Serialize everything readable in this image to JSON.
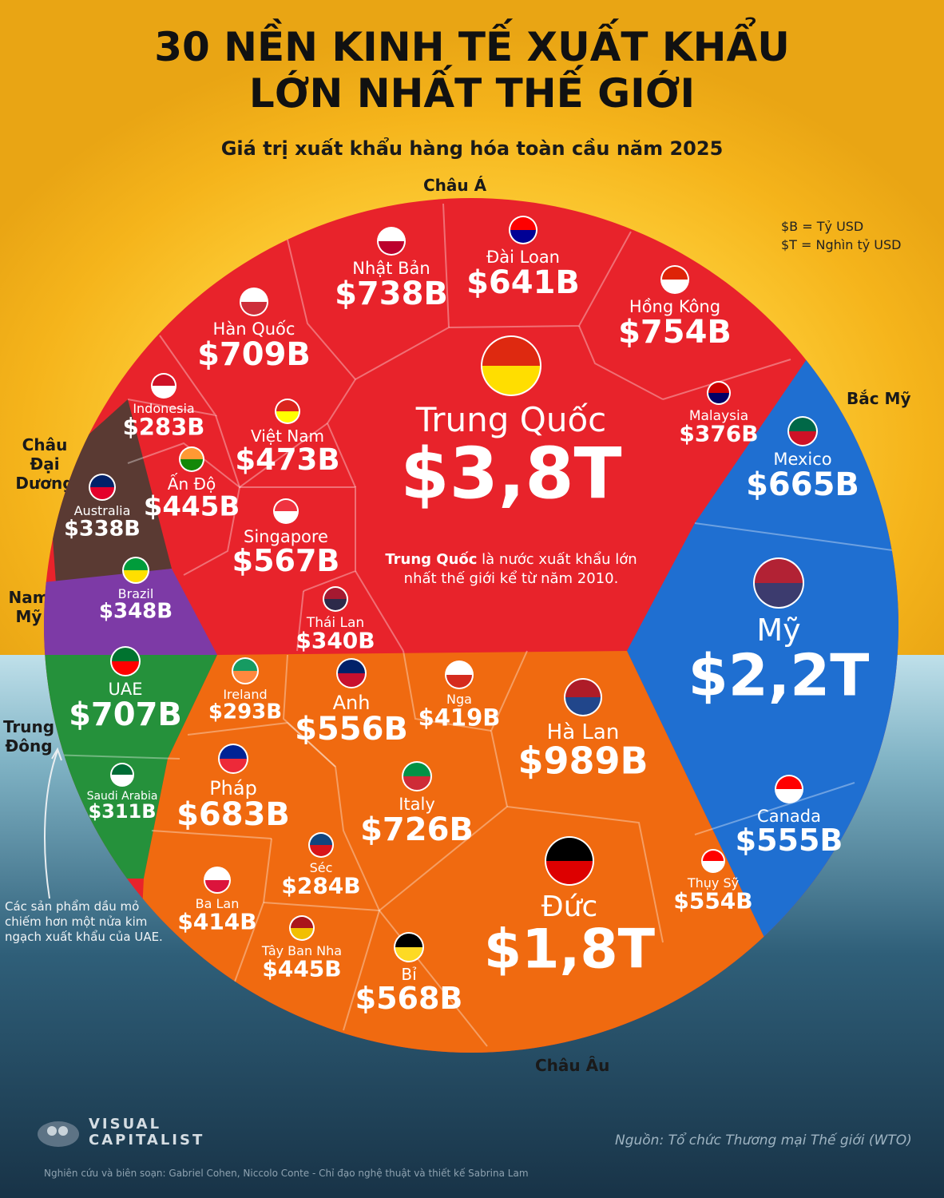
{
  "header": {
    "title_line1": "30 NỀN KINH TẾ XUẤT KHẨU",
    "title_line2": "LỚN NHẤT THẾ GIỚI",
    "subtitle": "Giá trị xuất khẩu hàng hóa toàn cầu năm 2025"
  },
  "legend": {
    "billion": "$B = Tỷ USD",
    "trillion": "$T = Nghìn tỷ USD"
  },
  "regions": {
    "asia": "Châu Á",
    "north_america": "Bắc Mỹ",
    "oceania": "Châu Đại Dương",
    "south_america": "Nam Mỹ",
    "middle_east": "Trung Đông",
    "europe": "Châu Âu"
  },
  "colors": {
    "asia": "#e8232b",
    "north_america": "#1f6fd1",
    "oceania": "#5a3a33",
    "south_america": "#7d3aa6",
    "middle_east": "#25913b",
    "europe": "#f06a10"
  },
  "china_note": {
    "bold": "Trung Quốc",
    "rest1": " là nước xuất khẩu lớn",
    "rest2": "nhất thế giới kể từ năm 2010."
  },
  "uae_note": "Các sản phẩm dầu mỏ chiếm hơn một nửa kim ngạch xuất khẩu của UAE.",
  "footer": {
    "source": "Nguồn: Tổ chức Thương mại Thế giới (WTO)",
    "credit": "Nghiên cứu và biên soạn: Gabriel Cohen, Niccolo Conte - Chỉ đạo nghệ thuật và thiết kế Sabrina Lam",
    "logo_line1": "VISUAL",
    "logo_line2": "CAPITALIST"
  },
  "chart_data": {
    "type": "voronoi-treemap",
    "unit_note": "$B = Tỷ USD, $T = Nghìn tỷ USD",
    "countries": [
      {
        "name": "Trung Quốc",
        "label": "$3,8T",
        "value_usd_billion": 3800,
        "region": "Châu Á"
      },
      {
        "name": "Nhật Bản",
        "label": "$738B",
        "value_usd_billion": 738,
        "region": "Châu Á"
      },
      {
        "name": "Đài Loan",
        "label": "$641B",
        "value_usd_billion": 641,
        "region": "Châu Á"
      },
      {
        "name": "Hồng Kông",
        "label": "$754B",
        "value_usd_billion": 754,
        "region": "Châu Á"
      },
      {
        "name": "Hàn Quốc",
        "label": "$709B",
        "value_usd_billion": 709,
        "region": "Châu Á"
      },
      {
        "name": "Indonesia",
        "label": "$283B",
        "value_usd_billion": 283,
        "region": "Châu Á"
      },
      {
        "name": "Việt Nam",
        "label": "$473B",
        "value_usd_billion": 473,
        "region": "Châu Á"
      },
      {
        "name": "Malaysia",
        "label": "$376B",
        "value_usd_billion": 376,
        "region": "Châu Á"
      },
      {
        "name": "Ấn Độ",
        "label": "$445B",
        "value_usd_billion": 445,
        "region": "Châu Á"
      },
      {
        "name": "Singapore",
        "label": "$567B",
        "value_usd_billion": 567,
        "region": "Châu Á"
      },
      {
        "name": "Thái Lan",
        "label": "$340B",
        "value_usd_billion": 340,
        "region": "Châu Á"
      },
      {
        "name": "Mexico",
        "label": "$665B",
        "value_usd_billion": 665,
        "region": "Bắc Mỹ"
      },
      {
        "name": "Mỹ",
        "label": "$2,2T",
        "value_usd_billion": 2200,
        "region": "Bắc Mỹ"
      },
      {
        "name": "Canada",
        "label": "$555B",
        "value_usd_billion": 555,
        "region": "Bắc Mỹ"
      },
      {
        "name": "Australia",
        "label": "$338B",
        "value_usd_billion": 338,
        "region": "Châu Đại Dương"
      },
      {
        "name": "Brazil",
        "label": "$348B",
        "value_usd_billion": 348,
        "region": "Nam Mỹ"
      },
      {
        "name": "UAE",
        "label": "$707B",
        "value_usd_billion": 707,
        "region": "Trung Đông"
      },
      {
        "name": "Saudi Arabia",
        "label": "$311B",
        "value_usd_billion": 311,
        "region": "Trung Đông"
      },
      {
        "name": "Ireland",
        "label": "$293B",
        "value_usd_billion": 293,
        "region": "Châu Âu"
      },
      {
        "name": "Anh",
        "label": "$556B",
        "value_usd_billion": 556,
        "region": "Châu Âu"
      },
      {
        "name": "Nga",
        "label": "$419B",
        "value_usd_billion": 419,
        "region": "Châu Âu"
      },
      {
        "name": "Hà Lan",
        "label": "$989B",
        "value_usd_billion": 989,
        "region": "Châu Âu"
      },
      {
        "name": "Pháp",
        "label": "$683B",
        "value_usd_billion": 683,
        "region": "Châu Âu"
      },
      {
        "name": "Italy",
        "label": "$726B",
        "value_usd_billion": 726,
        "region": "Châu Âu"
      },
      {
        "name": "Séc",
        "label": "$284B",
        "value_usd_billion": 284,
        "region": "Châu Âu"
      },
      {
        "name": "Ba Lan",
        "label": "$414B",
        "value_usd_billion": 414,
        "region": "Châu Âu"
      },
      {
        "name": "Tây Ban Nha",
        "label": "$445B",
        "value_usd_billion": 445,
        "region": "Châu Âu"
      },
      {
        "name": "Bỉ",
        "label": "$568B",
        "value_usd_billion": 568,
        "region": "Châu Âu"
      },
      {
        "name": "Đức",
        "label": "$1,8T",
        "value_usd_billion": 1800,
        "region": "Châu Âu"
      },
      {
        "name": "Thụy Sỹ",
        "label": "$554B",
        "value_usd_billion": 554,
        "region": "Châu Âu"
      }
    ]
  }
}
